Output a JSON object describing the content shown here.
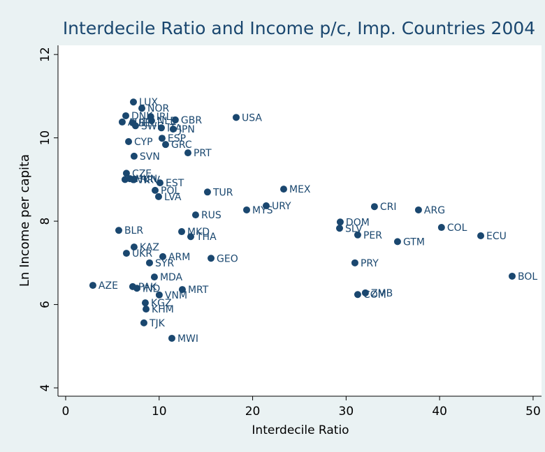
{
  "chart_data": {
    "type": "scatter",
    "title": "Interdecile Ratio and Income p/c, Imp. Countries 2004",
    "x_label": "Interdecile Ratio",
    "y_label": "Ln Income per capita",
    "color": "#1a476f",
    "grid": false,
    "xlim": [
      -0.82,
      50.9
    ],
    "ylim": [
      3.8,
      12.22
    ],
    "xticks": [
      0,
      10,
      20,
      30,
      40,
      50
    ],
    "yticks": [
      4,
      6,
      8,
      10,
      12
    ],
    "labels": [
      "LUX",
      "NOR",
      "IRL",
      "DNK",
      "AUT",
      "BEL",
      "SWE",
      "NLD",
      "GBR",
      "ITA",
      "JPN",
      "USA",
      "ESP",
      "GRC",
      "CYP",
      "PRT",
      "SVN",
      "CZE",
      "SVK",
      "HUN",
      "HRV",
      "EST",
      "POL",
      "LVA",
      "TUR",
      "MEX",
      "URY",
      "MYS",
      "RUS",
      "CRI",
      "ARG",
      "DOM",
      "SLV",
      "PER",
      "GTM",
      "COL",
      "ECU",
      "BLR",
      "MKD",
      "THA",
      "KAZ",
      "UKR",
      "ARM",
      "SYR",
      "GEO",
      "PRY",
      "BOL",
      "MDA",
      "AZE",
      "PAK",
      "IND",
      "MRT",
      "VNM",
      "ZMB",
      "COM",
      "KGZ",
      "KHM",
      "TJK",
      "MWI"
    ],
    "x": [
      7.25,
      8.15,
      9.1,
      6.43,
      6.05,
      7.17,
      7.47,
      9.19,
      11.73,
      10.24,
      11.5,
      18.24,
      10.31,
      10.69,
      6.73,
      13.08,
      7.32,
      6.5,
      6.35,
      6.88,
      7.32,
      10.09,
      9.57,
      9.94,
      15.17,
      23.32,
      21.45,
      19.36,
      13.9,
      33.03,
      37.74,
      29.37,
      29.3,
      31.24,
      35.5,
      40.2,
      44.4,
      5.68,
      12.41,
      13.38,
      7.32,
      6.5,
      10.39,
      8.97,
      15.55,
      30.94,
      47.76,
      9.49,
      2.91,
      7.17,
      7.62,
      12.48,
      10.01,
      32.06,
      31.24,
      8.52,
      8.6,
      8.37,
      11.36
    ],
    "values": [
      10.86,
      10.71,
      10.51,
      10.53,
      10.38,
      10.36,
      10.29,
      10.41,
      10.43,
      10.24,
      10.21,
      10.49,
      9.99,
      9.84,
      9.91,
      9.64,
      9.56,
      9.15,
      9.0,
      9.02,
      9.0,
      8.92,
      8.74,
      8.59,
      8.7,
      8.77,
      8.37,
      8.27,
      8.15,
      8.35,
      8.27,
      7.98,
      7.83,
      7.67,
      7.51,
      7.85,
      7.65,
      7.78,
      7.75,
      7.63,
      7.38,
      7.23,
      7.15,
      7.0,
      7.11,
      7.0,
      6.68,
      6.66,
      6.46,
      6.43,
      6.39,
      6.36,
      6.23,
      6.28,
      6.24,
      6.04,
      5.89,
      5.56,
      5.19
    ]
  }
}
